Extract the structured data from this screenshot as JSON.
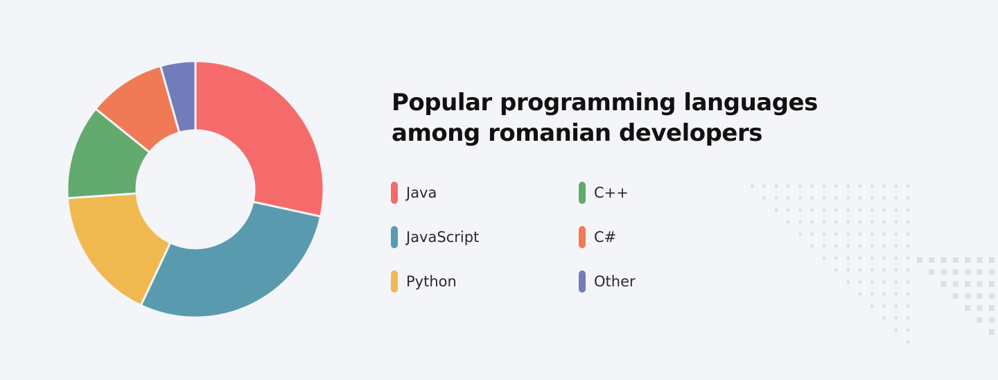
{
  "title_lines": [
    "Popular programming languages",
    "among romanian developers"
  ],
  "colors": {
    "background": "#f4f5f9",
    "dots": "#dddfe6"
  },
  "legend": [
    {
      "label": "Java",
      "color": "#f56b6b"
    },
    {
      "label": "JavaScript",
      "color": "#5a9aae"
    },
    {
      "label": "Python",
      "color": "#f0b950"
    },
    {
      "label": "C++",
      "color": "#62aa6d"
    },
    {
      "label": "C#",
      "color": "#f07a55"
    },
    {
      "label": "Other",
      "color": "#737cbb"
    }
  ],
  "chart_data": {
    "type": "pie",
    "donut": true,
    "title": "Popular programming languages among romanian developers",
    "categories": [
      "Java",
      "JavaScript",
      "Python",
      "C++",
      "C#",
      "Other"
    ],
    "values": [
      28.4,
      28.6,
      16.9,
      11.9,
      9.8,
      4.4
    ],
    "colors": [
      "#f56b6b",
      "#5a9aae",
      "#f0b950",
      "#62aa6d",
      "#f07a55",
      "#737cbb"
    ],
    "legend_position": "right",
    "start_angle": "12 o'clock, clockwise"
  }
}
